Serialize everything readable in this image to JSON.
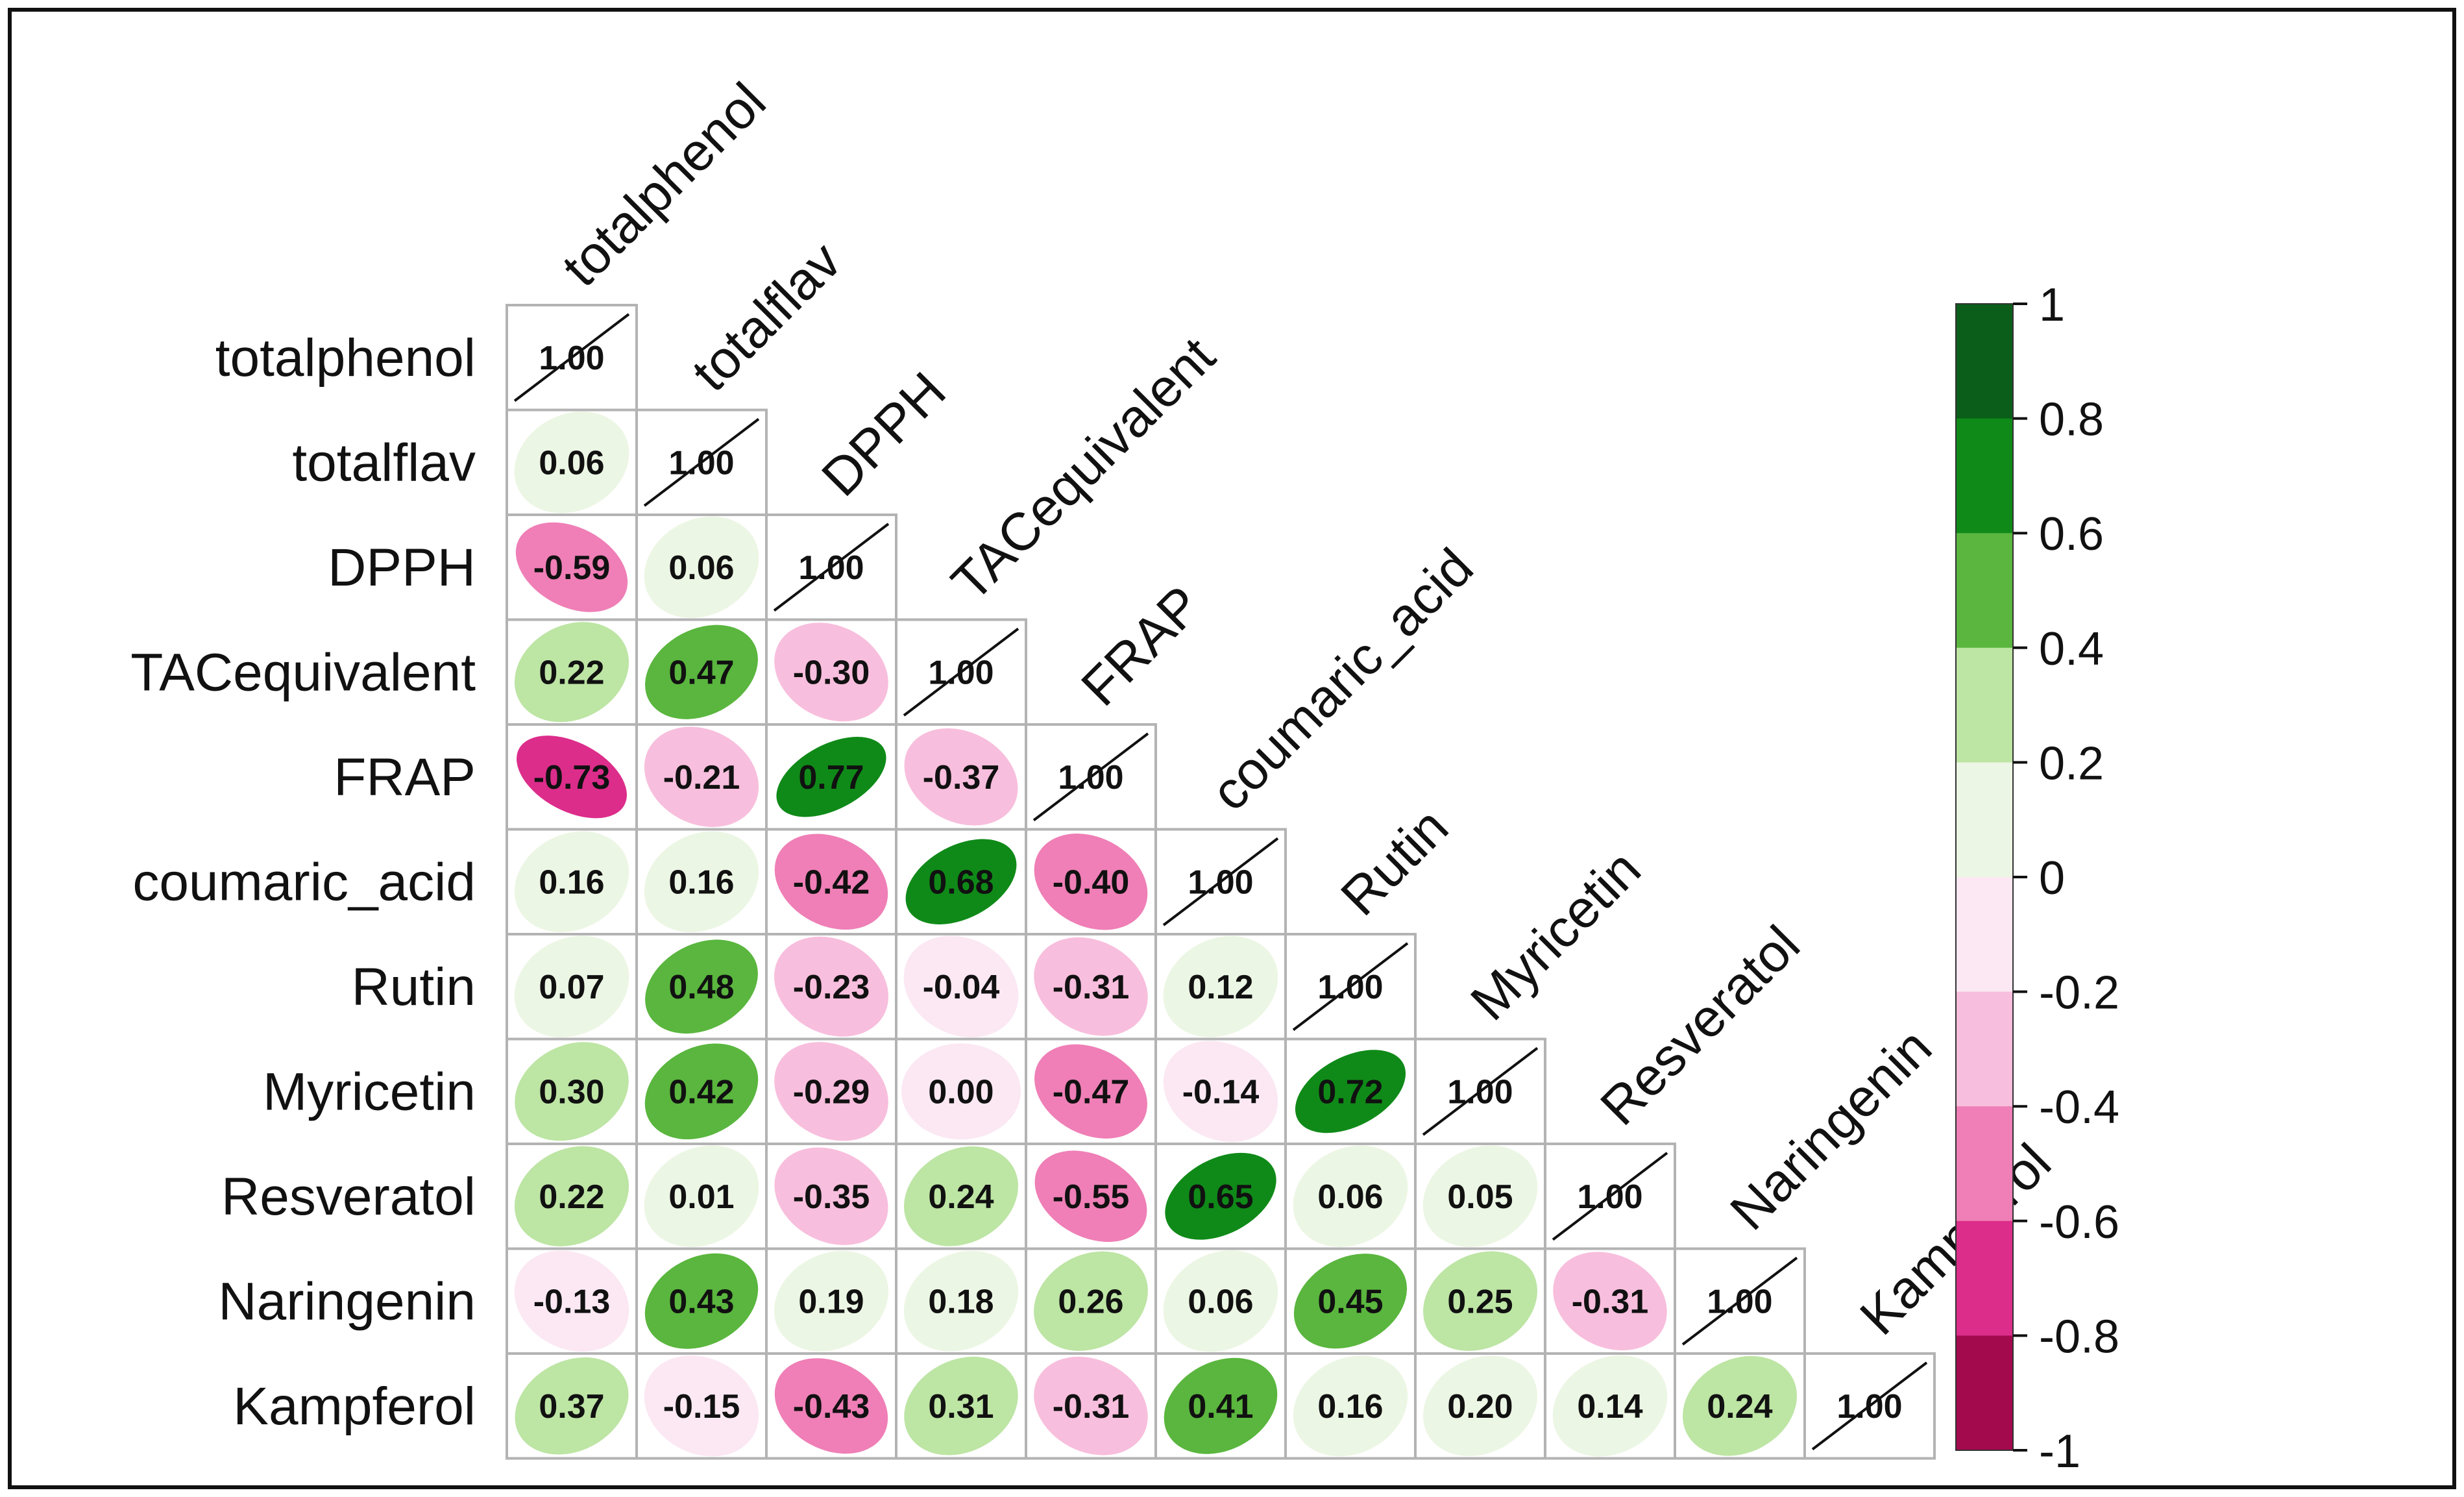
{
  "chart_data": {
    "type": "heatmap",
    "subtype": "correlation-matrix-lower-ellipse",
    "variables": [
      "totalphenol",
      "totalflav",
      "DPPH",
      "TACequivalent",
      "FRAP",
      "coumaric_acid",
      "Rutin",
      "Myricetin",
      "Resveratol",
      "Naringenin",
      "Kampferol"
    ],
    "matrix": [
      [
        1.0
      ],
      [
        0.06,
        1.0
      ],
      [
        -0.59,
        0.06,
        1.0
      ],
      [
        0.22,
        0.47,
        -0.3,
        1.0
      ],
      [
        -0.73,
        -0.21,
        0.77,
        -0.37,
        1.0
      ],
      [
        0.16,
        0.16,
        -0.42,
        0.68,
        -0.4,
        1.0
      ],
      [
        0.07,
        0.48,
        -0.23,
        -0.04,
        -0.31,
        0.12,
        1.0
      ],
      [
        0.3,
        0.42,
        -0.29,
        0.0,
        -0.47,
        -0.14,
        0.72,
        1.0
      ],
      [
        0.22,
        0.01,
        -0.35,
        0.24,
        -0.55,
        0.65,
        0.06,
        0.05,
        1.0
      ],
      [
        -0.13,
        0.43,
        0.19,
        0.18,
        0.26,
        0.06,
        0.45,
        0.25,
        -0.31,
        1.0
      ],
      [
        0.37,
        -0.15,
        -0.43,
        0.31,
        -0.31,
        0.41,
        0.16,
        0.2,
        0.14,
        0.24,
        1.0
      ]
    ],
    "colorbar": {
      "range": [
        -1,
        1
      ],
      "ticks": [
        "1",
        "0.8",
        "0.6",
        "0.4",
        "0.2",
        "0",
        "-0.2",
        "-0.4",
        "-0.6",
        "-0.8",
        "-1"
      ],
      "bins": [
        {
          "from": 0.8,
          "to": 1.0,
          "color": "#0b5e1a"
        },
        {
          "from": 0.6,
          "to": 0.8,
          "color": "#0f8a18"
        },
        {
          "from": 0.4,
          "to": 0.6,
          "color": "#5ab63e"
        },
        {
          "from": 0.2,
          "to": 0.4,
          "color": "#bde5a4"
        },
        {
          "from": 0.0,
          "to": 0.2,
          "color": "#ecf6e4"
        },
        {
          "from": -0.2,
          "to": 0.0,
          "color": "#fbe8f3"
        },
        {
          "from": -0.4,
          "to": -0.2,
          "color": "#f8bedd"
        },
        {
          "from": -0.6,
          "to": -0.4,
          "color": "#ef7fb6"
        },
        {
          "from": -0.8,
          "to": -0.6,
          "color": "#dc2d8b"
        },
        {
          "from": -1.0,
          "to": -0.8,
          "color": "#a3094d"
        }
      ]
    },
    "colors": {
      "grid": "#b3b3b3",
      "text": "#111111",
      "diagonal_line": "#111111"
    }
  }
}
